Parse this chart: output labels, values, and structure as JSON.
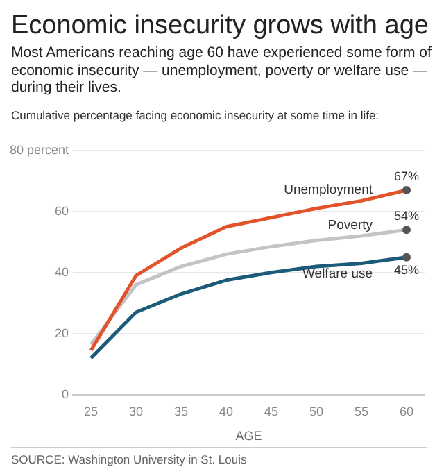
{
  "chart_data": {
    "type": "line",
    "title": "Economic insecurity grows with age",
    "subtitle": "Most Americans reaching age 60 have experienced some form of economic insecurity — unemployment, poverty or welfare use — during their lives.",
    "xlabel": "AGE",
    "annotations": [
      "Cumulative percentage facing economic insecurity at some time in life:",
      "SOURCE: Washington University in St. Louis"
    ],
    "x": [
      25,
      30,
      35,
      40,
      45,
      50,
      55,
      60
    ],
    "series": [
      {
        "name": "Unemployment",
        "color": "#e2532b",
        "values": [
          14.5,
          39,
          48,
          55,
          58,
          61,
          63.5,
          67
        ],
        "value_labels": [
          null,
          null,
          null,
          null,
          null,
          null,
          null,
          "67%"
        ]
      },
      {
        "name": "Poverty",
        "color": "#c4c4c8",
        "values": [
          16.5,
          36,
          42,
          46,
          48.5,
          50.5,
          52,
          54
        ],
        "value_labels": [
          null,
          null,
          null,
          null,
          null,
          null,
          null,
          "54%"
        ]
      },
      {
        "name": "Welfare use",
        "color": "#1b5a78",
        "values": [
          12,
          27,
          33,
          37.5,
          40,
          42,
          43,
          45
        ],
        "value_labels": [
          null,
          null,
          null,
          null,
          null,
          null,
          null,
          "45%"
        ]
      }
    ],
    "xlim": [
      23,
      62
    ],
    "xticks": [
      25,
      30,
      35,
      40,
      45,
      50,
      55,
      60
    ],
    "ylim": [
      0,
      80
    ],
    "yticks": [
      0,
      20,
      40,
      60,
      {
        "value": 80,
        "label": "80 percent"
      }
    ],
    "grid": "y",
    "legend": false
  }
}
